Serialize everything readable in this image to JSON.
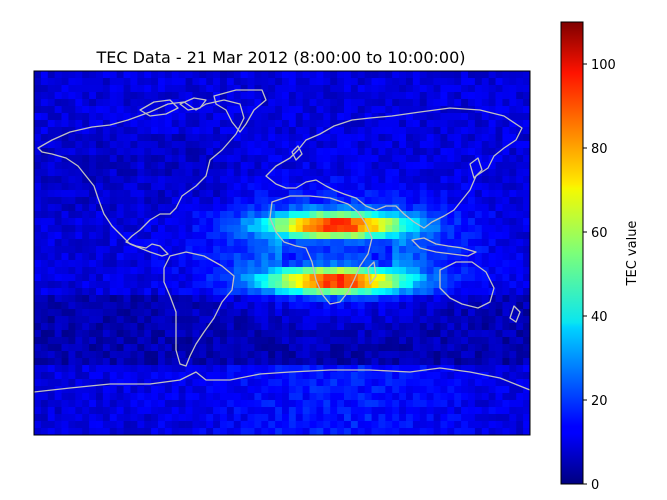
{
  "chart_data": {
    "type": "heatmap",
    "title": "TEC Data - 21 Mar 2012 (8:00:00 to 10:00:00)",
    "colorbar": {
      "label": "TEC value",
      "range": [
        0,
        110
      ],
      "ticks": [
        0,
        20,
        40,
        60,
        80,
        100
      ],
      "colormap": "jet"
    },
    "map": {
      "projection": "equirectangular",
      "lon_range": [
        -180,
        180
      ],
      "lat_range": [
        -90,
        90
      ],
      "coastline_color": "#c0c0c0"
    },
    "tec_features": {
      "background_level": 10,
      "equatorial_anomaly_peak_lon": 40,
      "crest_north_lat": 14,
      "crest_south_lat": -14,
      "crest_peak_value": 100,
      "trough_value": 6
    }
  }
}
